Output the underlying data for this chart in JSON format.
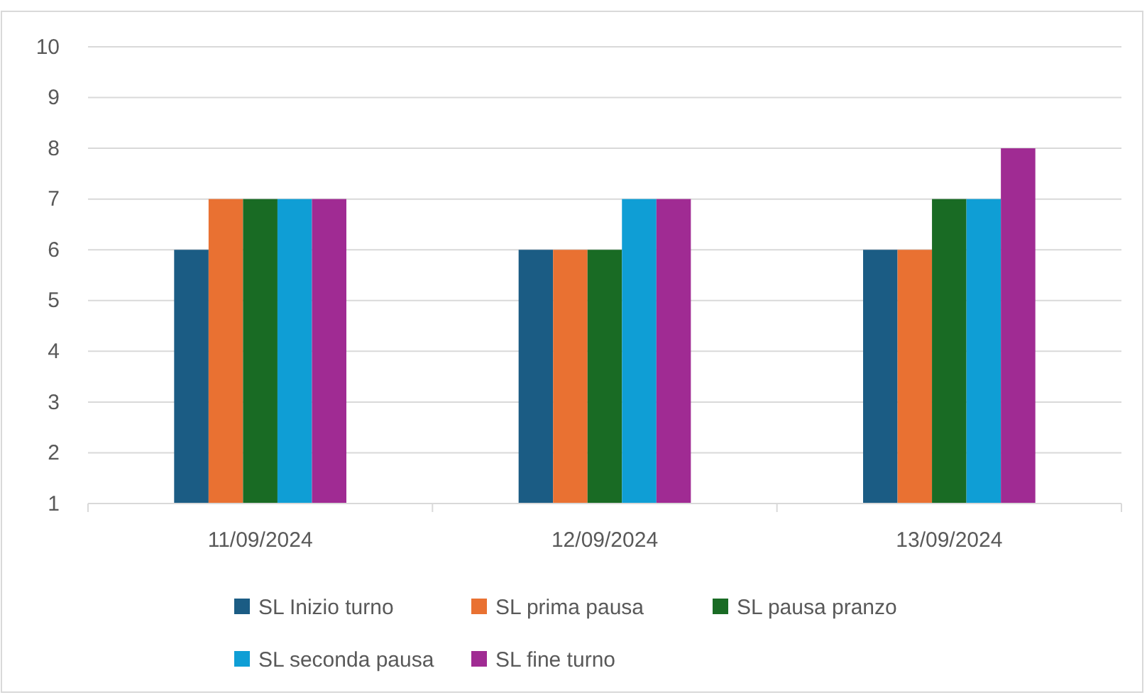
{
  "chart_data": {
    "type": "bar",
    "categories": [
      "11/09/2024",
      "12/09/2024",
      "13/09/2024"
    ],
    "series": [
      {
        "name": "SL Inizio turno",
        "color": "#1b5c84",
        "values": [
          6,
          6,
          6
        ]
      },
      {
        "name": "SL prima pausa",
        "color": "#e97132",
        "values": [
          7,
          6,
          6
        ]
      },
      {
        "name": "SL pausa pranzo",
        "color": "#196b24",
        "values": [
          7,
          6,
          7
        ]
      },
      {
        "name": "SL seconda pausa",
        "color": "#0f9ed5",
        "values": [
          7,
          7,
          7
        ]
      },
      {
        "name": "SL fine turno",
        "color": "#a02b93",
        "values": [
          7,
          7,
          8
        ]
      }
    ],
    "ylim": [
      1,
      10
    ],
    "yticks": [
      1,
      2,
      3,
      4,
      5,
      6,
      7,
      8,
      9,
      10
    ],
    "grid": "y",
    "legend": "bottom"
  }
}
